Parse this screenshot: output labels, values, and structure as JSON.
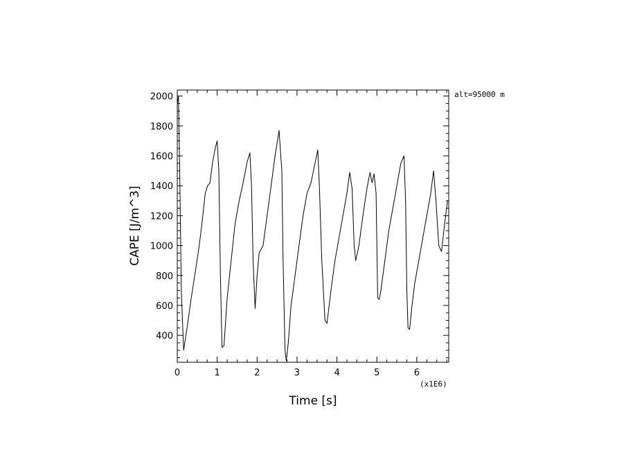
{
  "chart_data": {
    "type": "line",
    "xlabel": "Time [s]",
    "ylabel": "CAPE [J/m^3]",
    "x_multiplier_label": "(x1E6)",
    "annotation": "alt=95000 m",
    "xlim": [
      0,
      6.8
    ],
    "ylim": [
      220,
      2040
    ],
    "x_ticks": [
      0,
      1,
      2,
      3,
      4,
      5,
      6
    ],
    "y_ticks": [
      400,
      600,
      800,
      1000,
      1200,
      1400,
      1600,
      1800,
      2000
    ],
    "grid": false,
    "series": [
      {
        "x": [
          0.0,
          0.03,
          0.06,
          0.1,
          0.16,
          0.25,
          0.35,
          0.45,
          0.55,
          0.62,
          0.7,
          0.76,
          0.82,
          0.88,
          0.95,
          1.0,
          1.04,
          1.08,
          1.12,
          1.17,
          1.25,
          1.35,
          1.45,
          1.55,
          1.65,
          1.75,
          1.82,
          1.86,
          1.9,
          1.95,
          2.0,
          2.05,
          2.15,
          2.25,
          2.35,
          2.45,
          2.55,
          2.62,
          2.65,
          2.7,
          2.73,
          2.78,
          2.85,
          2.95,
          3.05,
          3.15,
          3.25,
          3.35,
          3.45,
          3.52,
          3.56,
          3.62,
          3.7,
          3.75,
          3.85,
          3.95,
          4.05,
          4.15,
          4.25,
          4.32,
          4.38,
          4.43,
          4.47,
          4.55,
          4.65,
          4.75,
          4.83,
          4.88,
          4.93,
          4.98,
          5.02,
          5.06,
          5.1,
          5.2,
          5.3,
          5.4,
          5.5,
          5.6,
          5.68,
          5.72,
          5.75,
          5.78,
          5.82,
          5.88,
          5.95,
          6.05,
          6.15,
          6.25,
          6.35,
          6.42,
          6.48,
          6.55,
          6.62,
          6.7,
          6.77
        ],
        "y": [
          1950,
          2000,
          1500,
          700,
          300,
          460,
          650,
          820,
          1000,
          1150,
          1350,
          1400,
          1420,
          1550,
          1650,
          1700,
          1500,
          800,
          320,
          330,
          650,
          900,
          1150,
          1300,
          1420,
          1560,
          1620,
          1400,
          900,
          580,
          800,
          950,
          1000,
          1200,
          1400,
          1600,
          1770,
          1500,
          900,
          300,
          230,
          350,
          600,
          800,
          1000,
          1200,
          1350,
          1420,
          1550,
          1640,
          1400,
          900,
          500,
          480,
          700,
          900,
          1050,
          1200,
          1350,
          1490,
          1380,
          1000,
          900,
          1000,
          1200,
          1380,
          1490,
          1420,
          1480,
          1350,
          650,
          640,
          700,
          900,
          1100,
          1250,
          1400,
          1550,
          1600,
          1300,
          700,
          450,
          440,
          600,
          750,
          900,
          1050,
          1200,
          1350,
          1500,
          1300,
          1000,
          960,
          1150,
          1300
        ]
      }
    ]
  }
}
